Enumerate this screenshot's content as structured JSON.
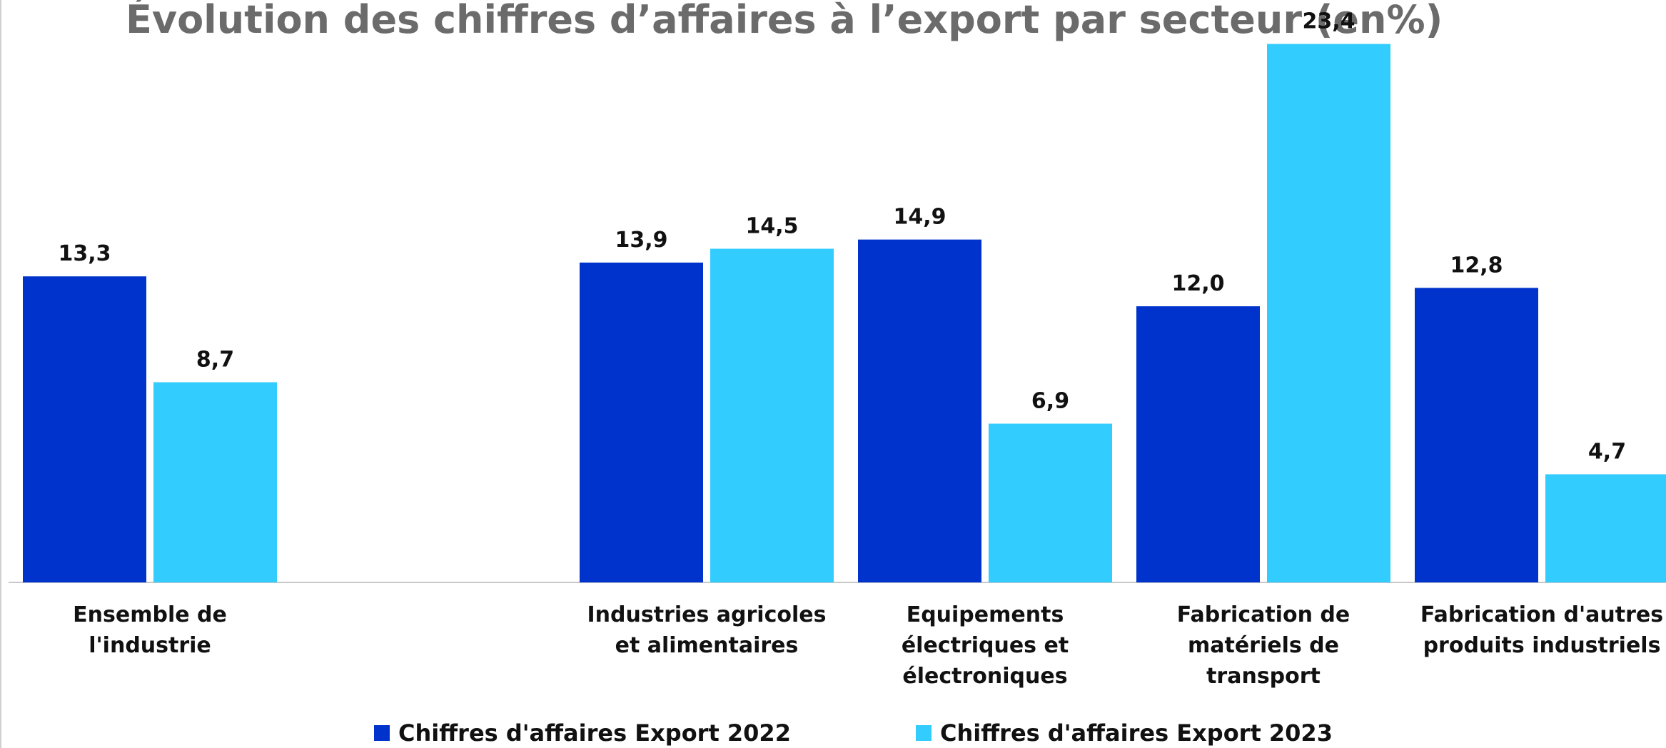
{
  "chart_data": {
    "type": "bar",
    "title": "Évolution des chiffres d’affaires à l’export par secteur (en%)",
    "categories": [
      "Ensemble de l'industrie",
      null,
      "Industries agricoles et alimentaires",
      "Equipements électriques et électroniques",
      "Fabrication de matériels de transport",
      "Fabrication d'autres produits industriels"
    ],
    "series": [
      {
        "name": "Chiffres d'affaires Export 2022",
        "color": "#0033cc",
        "values": [
          13.3,
          null,
          13.9,
          14.9,
          12.0,
          12.8
        ],
        "value_labels": [
          "13,3",
          null,
          "13,9",
          "14,9",
          "12,0",
          "12,8"
        ]
      },
      {
        "name": "Chiffres d'affaires Export 2023",
        "color": "#33ccff",
        "values": [
          8.7,
          null,
          14.5,
          6.9,
          23.4,
          4.7
        ],
        "value_labels": [
          "8,7",
          null,
          "14,5",
          "6,9",
          "23,4",
          "4,7"
        ]
      }
    ],
    "ylim": [
      0,
      25
    ],
    "grid": false,
    "legend": "bottom"
  }
}
